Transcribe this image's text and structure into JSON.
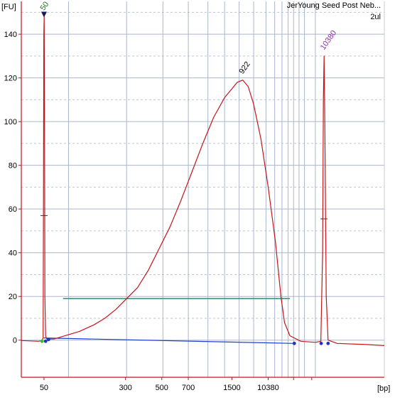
{
  "window": {
    "title": "JerYoung Seed Post Neb...",
    "subtitle": "2ul"
  },
  "chart_data": {
    "type": "line",
    "title": "JerYoung Seed Post Neb...",
    "subtitle": "2ul",
    "ylabel": "[FU]",
    "xlabel": "[bp]",
    "ylim": [
      -17,
      155
    ],
    "yticks": [
      0,
      20,
      40,
      60,
      80,
      100,
      120,
      140
    ],
    "xtick_labels": [
      "50",
      "300",
      "500",
      "700",
      "1500",
      "10380"
    ],
    "grid": true,
    "series": [
      {
        "values": [
          [
            0,
            -0.2
          ],
          [
            48,
            -0.5
          ],
          [
            57,
            -0.2
          ],
          [
            60,
            1
          ],
          [
            61,
            60
          ],
          [
            62,
            140
          ],
          [
            63,
            148
          ],
          [
            64,
            100
          ],
          [
            65,
            20
          ],
          [
            67,
            2
          ],
          [
            70,
            0.5
          ],
          [
            90,
            0.5
          ],
          [
            120,
            2
          ],
          [
            160,
            4
          ],
          [
            200,
            7
          ],
          [
            230,
            10
          ],
          [
            260,
            14
          ],
          [
            290,
            19
          ],
          [
            320,
            24
          ],
          [
            350,
            32
          ],
          [
            380,
            42
          ],
          [
            410,
            52
          ],
          [
            440,
            64
          ],
          [
            470,
            77
          ],
          [
            500,
            90
          ],
          [
            530,
            102
          ],
          [
            560,
            111
          ],
          [
            580,
            115
          ],
          [
            595,
            118
          ],
          [
            610,
            119
          ],
          [
            625,
            116
          ],
          [
            640,
            108
          ],
          [
            660,
            92
          ],
          [
            680,
            70
          ],
          [
            700,
            45
          ],
          [
            715,
            20
          ],
          [
            725,
            8
          ],
          [
            740,
            2
          ],
          [
            770,
            -0.5
          ],
          [
            810,
            -1
          ],
          [
            825,
            -0.5
          ],
          [
            830,
            40
          ],
          [
            832,
            110
          ],
          [
            834,
            130
          ],
          [
            836,
            100
          ],
          [
            840,
            20
          ],
          [
            845,
            0
          ],
          [
            870,
            -1.5
          ],
          [
            950,
            -2
          ],
          [
            1000,
            -2.5
          ]
        ]
      },
      {
        "values": [
          [
            62,
            1
          ],
          [
            750,
            -1.5
          ]
        ]
      }
    ],
    "peaks": [
      {
        "label": "50",
        "x": 62.5,
        "y": 148,
        "color": "#1e7a1e"
      },
      {
        "label": "922",
        "x": 610,
        "y": 119,
        "color": "#000000"
      },
      {
        "label": "10380",
        "x": 834,
        "y": 130,
        "color": "#8b2fa8"
      }
    ],
    "smear_region": {
      "y": 19,
      "x_start": 115,
      "x_end": 740
    },
    "colors": {
      "trace": "#c4161c",
      "baseline": "#1f3fd0",
      "region": "#3a8f6a",
      "grid": "#a9b6cc",
      "axis": "#c4161c"
    }
  }
}
